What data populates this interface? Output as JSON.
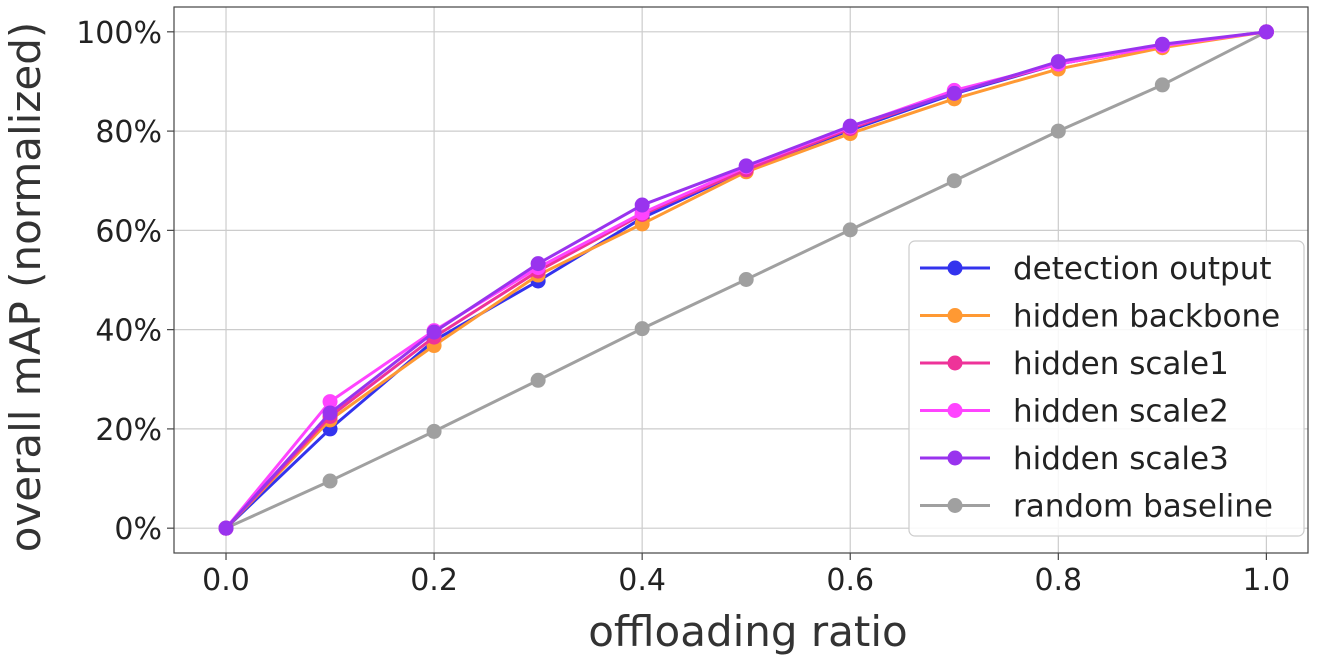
{
  "chart_data": {
    "type": "line",
    "title": "",
    "xlabel": "offloading ratio",
    "ylabel": "overall mAP (normalized)",
    "xlim": [
      -0.05,
      1.04
    ],
    "ylim": [
      -0.05,
      1.05
    ],
    "grid": true,
    "legend_position": "lower-right",
    "x_ticks": [
      0.0,
      0.2,
      0.4,
      0.6,
      0.8,
      1.0
    ],
    "x_tick_labels": [
      "0.0",
      "0.2",
      "0.4",
      "0.6",
      "0.8",
      "1.0"
    ],
    "y_ticks": [
      0,
      0.2,
      0.4,
      0.6,
      0.8,
      1.0
    ],
    "y_tick_labels": [
      "0%",
      "20%",
      "40%",
      "60%",
      "80%",
      "100%"
    ],
    "x": [
      0.0,
      0.1,
      0.2,
      0.3,
      0.4,
      0.5,
      0.6,
      0.7,
      0.8,
      0.9,
      1.0
    ],
    "series": [
      {
        "name": "random baseline",
        "color": "#a0a0a0",
        "values": [
          0.0,
          0.095,
          0.195,
          0.298,
          0.402,
          0.501,
          0.601,
          0.7,
          0.8,
          0.893,
          1.0
        ]
      },
      {
        "name": "detection output",
        "color": "#3333ee",
        "values": [
          0.0,
          0.2,
          0.378,
          0.498,
          0.625,
          0.722,
          0.802,
          0.875,
          0.935,
          0.972,
          1.0
        ]
      },
      {
        "name": "hidden backbone",
        "color": "#ff9933",
        "values": [
          0.0,
          0.218,
          0.368,
          0.51,
          0.613,
          0.718,
          0.795,
          0.865,
          0.925,
          0.968,
          1.0
        ]
      },
      {
        "name": "hidden scale1",
        "color": "#ee3399",
        "values": [
          0.0,
          0.225,
          0.385,
          0.518,
          0.632,
          0.722,
          0.805,
          0.878,
          0.935,
          0.973,
          1.0
        ]
      },
      {
        "name": "hidden scale2",
        "color": "#ff44ff",
        "values": [
          0.0,
          0.255,
          0.398,
          0.525,
          0.635,
          0.728,
          0.808,
          0.882,
          0.935,
          0.972,
          1.0
        ]
      },
      {
        "name": "hidden scale3",
        "color": "#9933ee",
        "values": [
          0.0,
          0.232,
          0.395,
          0.533,
          0.651,
          0.73,
          0.81,
          0.876,
          0.94,
          0.975,
          1.0
        ]
      }
    ],
    "legend_order": [
      "detection output",
      "hidden backbone",
      "hidden scale1",
      "hidden scale2",
      "hidden scale3",
      "random baseline"
    ]
  }
}
